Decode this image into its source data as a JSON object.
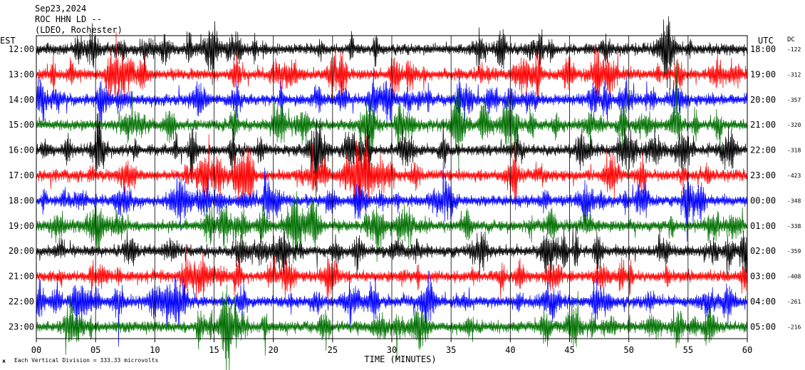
{
  "header": {
    "date": "Sep23,2024",
    "station": "ROC HHN LD --",
    "location": "(LDEO, Rochester)"
  },
  "axes": {
    "left_label": "EST",
    "right_label": "UTC",
    "dc_label": "DC",
    "x_title": "TIME (MINUTES)",
    "footer_note": "Each Vertical Division =  333.33 microvolts",
    "x_ticks": [
      "00",
      "05",
      "10",
      "15",
      "20",
      "25",
      "30",
      "35",
      "40",
      "45",
      "50",
      "55",
      "60"
    ]
  },
  "colors": {
    "cycle": [
      "#000000",
      "#ff0000",
      "#0000ff",
      "#007000"
    ]
  },
  "chart_data": {
    "type": "line",
    "title": "ROC HHN LD --",
    "xlabel": "TIME (MINUTES)",
    "xlim": [
      0,
      60
    ],
    "rows": [
      {
        "est": "12:00",
        "utc": "18:00",
        "dc": "-122",
        "color": "#000000"
      },
      {
        "est": "13:00",
        "utc": "19:00",
        "dc": "-312",
        "color": "#ff0000"
      },
      {
        "est": "14:00",
        "utc": "20:00",
        "dc": "-357",
        "color": "#0000ff"
      },
      {
        "est": "15:00",
        "utc": "21:00",
        "dc": "-320",
        "color": "#007000"
      },
      {
        "est": "16:00",
        "utc": "22:00",
        "dc": "-318",
        "color": "#000000"
      },
      {
        "est": "17:00",
        "utc": "23:00",
        "dc": "-423",
        "color": "#ff0000"
      },
      {
        "est": "18:00",
        "utc": "00:00",
        "dc": "-348",
        "color": "#0000ff"
      },
      {
        "est": "19:00",
        "utc": "01:00",
        "dc": "-338",
        "color": "#007000"
      },
      {
        "est": "20:00",
        "utc": "02:00",
        "dc": "-359",
        "color": "#000000"
      },
      {
        "est": "21:00",
        "utc": "03:00",
        "dc": "-408",
        "color": "#ff0000"
      },
      {
        "est": "22:00",
        "utc": "04:00",
        "dc": "-261",
        "color": "#0000ff"
      },
      {
        "est": "23:00",
        "utc": "05:00",
        "dc": "-216",
        "color": "#007000"
      }
    ]
  }
}
